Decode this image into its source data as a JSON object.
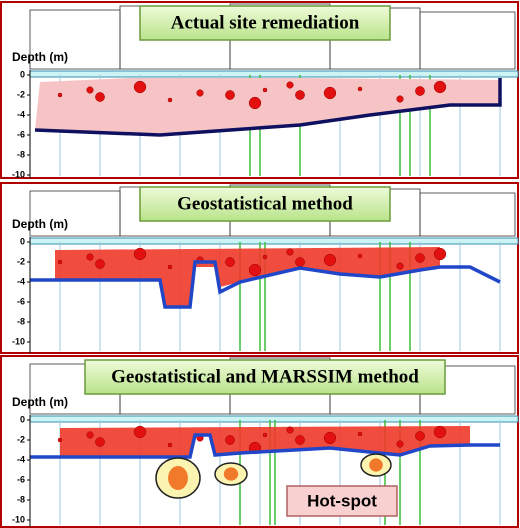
{
  "panels": [
    {
      "title": "Actual site remediation",
      "axis_label": "Depth (m)",
      "ticks": [
        0,
        -2,
        -4,
        -6,
        -8,
        -10
      ]
    },
    {
      "title": "Geostatistical method",
      "axis_label": "Depth (m)",
      "ticks": [
        0,
        -2,
        -4,
        -6,
        -8,
        -10
      ]
    },
    {
      "title": "Geostatistical and MARSSIM method",
      "axis_label": "Depth (m)",
      "ticks": [
        0,
        -2,
        -4,
        -6,
        -8,
        -10
      ]
    }
  ],
  "annotation": "Hot-spot"
}
